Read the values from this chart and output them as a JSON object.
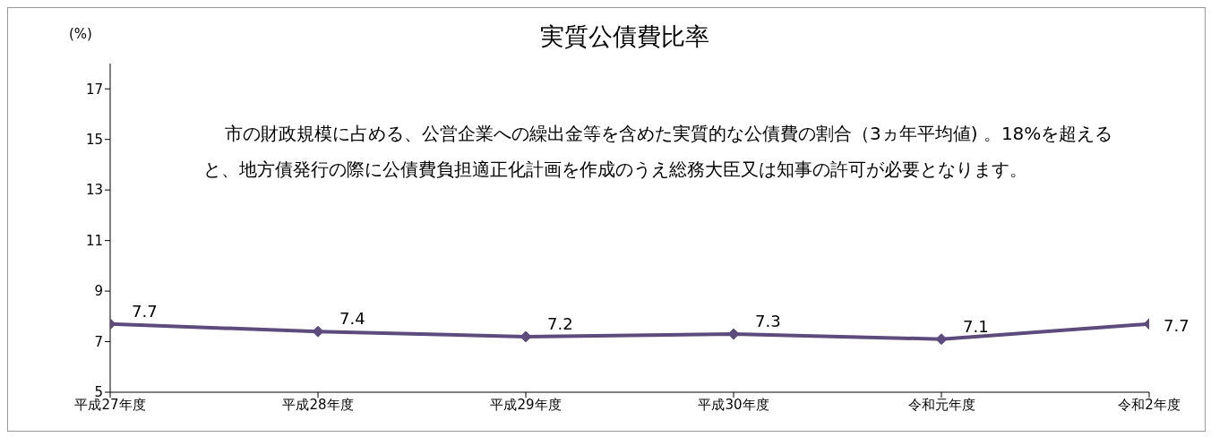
{
  "chart_data": {
    "type": "line",
    "title": "実質公債費比率",
    "ylabel": "(%)",
    "categories": [
      "平成27年度",
      "平成28年度",
      "平成29年度",
      "平成30年度",
      "令和元年度",
      "令和2年度"
    ],
    "series": [
      {
        "color": "#5e4b7e",
        "values": [
          7.7,
          7.4,
          7.2,
          7.3,
          7.1,
          7.7
        ]
      }
    ],
    "ylim": [
      5,
      18
    ],
    "yticks": [
      5,
      7,
      9,
      11,
      13,
      15,
      17
    ],
    "grid": false,
    "legend": false,
    "marker": "diamond",
    "line_style": "solid",
    "data_labels": true,
    "annotations": [
      "市の財政規模に占める、公営企業への繰出金等を含めた実質的な公債費の割合（3ヵ年平均値) 。18%を超えると、地方債発行の際に公債費負担適正化計画を作成のうえ総務大臣又は知事の許可が必要となります。"
    ]
  }
}
